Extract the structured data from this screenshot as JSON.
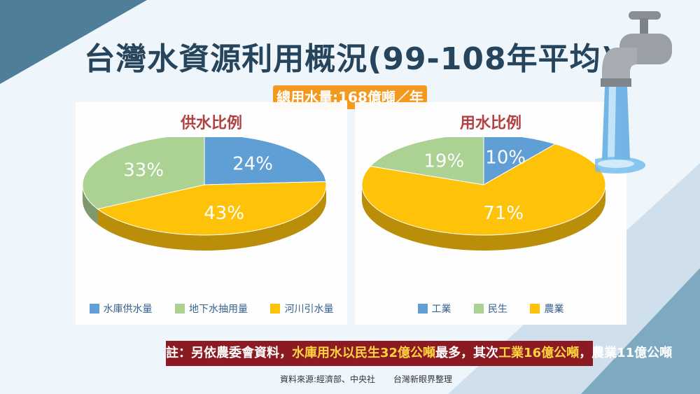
{
  "title": "台灣水資源利用概況(99-108年平均)",
  "total_label": "總用水量:168億噸／年",
  "colors": {
    "blue": "#5b9bd5",
    "green": "#a9d18e",
    "orange": "#ffc000"
  },
  "chart_data": [
    {
      "type": "pie",
      "title": "供水比例",
      "categories": [
        "水庫供水量",
        "地下水抽用量",
        "河川引水量"
      ],
      "values": [
        24,
        33,
        43
      ],
      "labels": [
        "24%",
        "33%",
        "43%"
      ]
    },
    {
      "type": "pie",
      "title": "用水比例",
      "categories": [
        "工業",
        "民生",
        "農業"
      ],
      "values": [
        10,
        19,
        71
      ],
      "labels": [
        "10%",
        "19%",
        "71%"
      ]
    }
  ],
  "note": {
    "prefix": "註：另依農委會資料，",
    "hl1": "水庫用水以",
    "hl2": "民生32億公噸",
    "mid": "最多，其次",
    "hl3": "工業16億公噸",
    "end": "，農業11億公噸"
  },
  "source": {
    "left": "資料來源:經濟部、中央社",
    "right": "台灣新眼界整理"
  }
}
